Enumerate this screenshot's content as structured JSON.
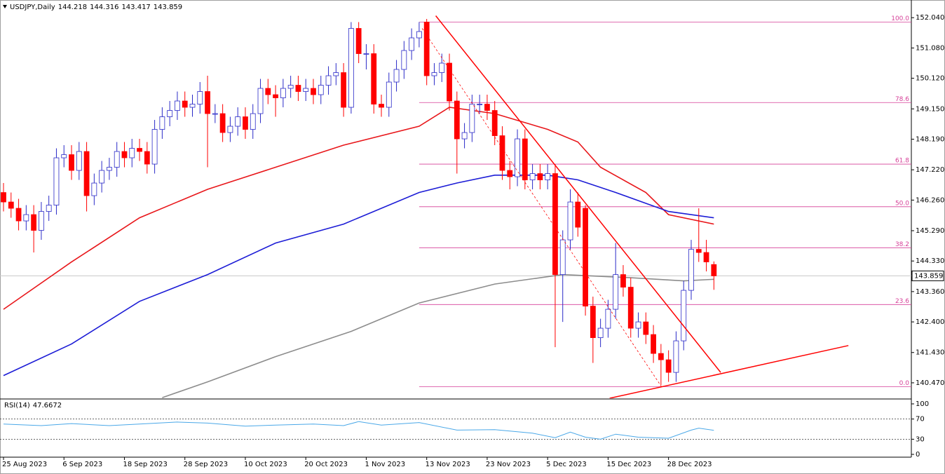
{
  "chart_data": {
    "type": "candlestick",
    "symbol": "USDJPY,Daily",
    "categories": [
      "25 Aug 2023",
      null,
      null,
      null,
      null,
      null,
      null,
      null,
      "6 Sep 2023",
      null,
      null,
      null,
      null,
      null,
      null,
      null,
      "18 Sep 2023",
      null,
      null,
      null,
      null,
      null,
      null,
      null,
      "28 Sep 2023",
      null,
      null,
      null,
      null,
      null,
      null,
      null,
      "10 Oct 2023",
      null,
      null,
      null,
      null,
      null,
      null,
      null,
      "20 Oct 2023",
      null,
      null,
      null,
      null,
      null,
      null,
      null,
      "1 Nov 2023",
      null,
      null,
      null,
      null,
      null,
      null,
      null,
      "13 Nov 2023",
      null,
      null,
      null,
      null,
      null,
      null,
      null,
      "23 Nov 2023",
      null,
      null,
      null,
      null,
      null,
      null,
      null,
      "5 Dec 2023",
      null,
      null,
      null,
      null,
      null,
      null,
      null,
      "15 Dec 2023",
      null,
      null,
      null,
      null,
      null,
      null,
      null,
      "28 Dec 2023",
      null,
      null,
      null,
      null,
      null,
      null
    ],
    "open": [
      146.5,
      146.2,
      146.0,
      145.6,
      145.8,
      145.3,
      145.9,
      146.1,
      147.6,
      147.7,
      147.2,
      147.8,
      146.4,
      146.8,
      147.2,
      147.3,
      147.8,
      147.6,
      147.9,
      147.8,
      147.4,
      148.5,
      148.9,
      149.1,
      149.4,
      149.2,
      149.3,
      149.7,
      149.0,
      149.0,
      148.4,
      148.6,
      148.9,
      148.5,
      149.0,
      149.8,
      149.6,
      149.5,
      149.8,
      149.9,
      149.7,
      149.8,
      149.6,
      149.9,
      150.2,
      150.3,
      149.2,
      151.7,
      150.9,
      150.9,
      149.3,
      149.2,
      150.0,
      150.4,
      151.0,
      151.4,
      151.9,
      150.2,
      150.3,
      150.6,
      149.4,
      148.2,
      148.4,
      149.3,
      149.3,
      149.1,
      148.3,
      147.2,
      147.0,
      148.2,
      146.9,
      147.1,
      146.9,
      147.1,
      143.9,
      145.0,
      146.2,
      146.0,
      142.9,
      141.9,
      142.2,
      142.8,
      143.9,
      143.5,
      142.2,
      142.4,
      142.0,
      141.4,
      141.2,
      140.8,
      141.8,
      143.4,
      144.7,
      144.6,
      144.218
    ],
    "high": [
      146.8,
      146.5,
      146.3,
      146.1,
      146.1,
      146.2,
      146.4,
      147.9,
      148.0,
      148.0,
      148.1,
      148.1,
      147.1,
      147.5,
      147.6,
      148.1,
      148.1,
      148.2,
      148.2,
      148.1,
      148.8,
      149.2,
      149.4,
      149.7,
      149.7,
      149.6,
      150.0,
      150.2,
      149.3,
      149.3,
      148.9,
      149.2,
      149.2,
      149.3,
      150.1,
      150.1,
      149.9,
      150.1,
      150.2,
      150.2,
      150.1,
      150.1,
      150.2,
      150.5,
      150.6,
      150.6,
      151.9,
      151.9,
      151.2,
      151.2,
      149.6,
      150.3,
      150.7,
      151.3,
      151.7,
      151.9,
      152.0,
      150.6,
      150.9,
      150.9,
      149.7,
      148.7,
      149.6,
      149.6,
      149.6,
      149.4,
      148.6,
      147.5,
      148.5,
      148.5,
      147.4,
      147.4,
      147.4,
      147.4,
      145.3,
      146.6,
      146.5,
      146.1,
      143.2,
      142.5,
      143.1,
      144.9,
      144.2,
      143.8,
      142.7,
      142.7,
      142.3,
      141.7,
      141.5,
      142.1,
      143.7,
      145.0,
      146.0,
      145.0,
      144.316
    ],
    "low": [
      145.9,
      145.7,
      145.3,
      145.3,
      144.6,
      145.0,
      145.6,
      145.8,
      147.3,
      146.9,
      146.9,
      145.9,
      146.1,
      146.5,
      146.9,
      147.0,
      147.3,
      147.3,
      147.5,
      147.1,
      147.1,
      148.2,
      148.6,
      148.8,
      148.9,
      148.9,
      149.0,
      147.3,
      148.7,
      148.1,
      148.1,
      148.3,
      148.2,
      148.2,
      148.7,
      149.3,
      148.9,
      149.2,
      149.5,
      149.4,
      149.4,
      149.3,
      149.3,
      149.6,
      149.9,
      148.9,
      149.0,
      150.6,
      150.4,
      149.0,
      148.9,
      148.9,
      149.7,
      150.1,
      150.7,
      151.1,
      149.9,
      149.9,
      150.0,
      149.1,
      147.1,
      147.9,
      148.1,
      149.0,
      148.8,
      148.0,
      146.9,
      146.6,
      146.7,
      146.6,
      146.6,
      146.6,
      146.6,
      141.6,
      142.4,
      144.7,
      145.1,
      142.6,
      141.1,
      141.6,
      141.9,
      142.5,
      143.2,
      141.9,
      141.9,
      141.7,
      141.1,
      140.4,
      140.5,
      140.5,
      141.5,
      143.1,
      144.3,
      144.0,
      143.417
    ],
    "close": [
      146.2,
      146.0,
      145.6,
      145.8,
      145.3,
      145.9,
      146.1,
      147.6,
      147.7,
      147.2,
      147.8,
      146.4,
      146.8,
      147.2,
      147.3,
      147.8,
      147.6,
      147.9,
      147.8,
      147.4,
      148.5,
      148.9,
      149.1,
      149.4,
      149.2,
      149.3,
      149.7,
      149.0,
      149.0,
      148.4,
      148.6,
      148.9,
      148.5,
      149.0,
      149.8,
      149.6,
      149.5,
      149.8,
      149.9,
      149.7,
      149.8,
      149.6,
      149.9,
      150.2,
      150.3,
      149.2,
      151.7,
      150.9,
      150.9,
      149.3,
      149.2,
      150.0,
      150.4,
      151.0,
      151.4,
      151.6,
      150.2,
      150.3,
      150.6,
      149.4,
      148.2,
      148.4,
      149.3,
      149.3,
      149.1,
      148.3,
      147.2,
      147.0,
      148.2,
      146.9,
      147.1,
      146.9,
      147.1,
      143.9,
      145.0,
      146.2,
      145.4,
      142.9,
      141.9,
      142.2,
      142.8,
      143.9,
      143.5,
      142.2,
      142.4,
      142.0,
      141.4,
      141.2,
      140.8,
      141.8,
      143.4,
      144.7,
      144.6,
      144.3,
      143.859
    ],
    "up_color": "#ffffff",
    "up_border": "#2b2bc8",
    "down_color": "#ff0000",
    "ylim": [
      139.98,
      152.6
    ],
    "yticks": [
      {
        "value": 152.04,
        "label": "152.040"
      },
      {
        "value": 151.08,
        "label": "151.080"
      },
      {
        "value": 150.12,
        "label": "150.120"
      },
      {
        "value": 149.15,
        "label": "149.150"
      },
      {
        "value": 148.19,
        "label": "148.190"
      },
      {
        "value": 147.22,
        "label": "147.220"
      },
      {
        "value": 146.26,
        "label": "146.260"
      },
      {
        "value": 145.29,
        "label": "145.290"
      },
      {
        "value": 144.33,
        "label": "144.330"
      },
      {
        "value": 143.36,
        "label": "143.360"
      },
      {
        "value": 142.4,
        "label": "142.400"
      },
      {
        "value": 141.43,
        "label": "141.430"
      },
      {
        "value": 140.47,
        "label": "140.470"
      }
    ],
    "moving_averages": [
      {
        "color": "#e8161a",
        "x": [
          0,
          9,
          18,
          27,
          36,
          45,
          55,
          59,
          65,
          72,
          76,
          79,
          85,
          88,
          94
        ],
        "values": [
          142.8,
          144.3,
          145.7,
          146.6,
          147.3,
          148.0,
          148.6,
          149.2,
          149.0,
          148.5,
          148.1,
          147.3,
          146.5,
          145.8,
          145.5
        ]
      },
      {
        "color": "#1c1cd6",
        "x": [
          0,
          9,
          18,
          27,
          36,
          45,
          55,
          60,
          65,
          72,
          76,
          81,
          88,
          94
        ],
        "values": [
          140.7,
          141.7,
          143.05,
          143.9,
          144.9,
          145.5,
          146.5,
          146.8,
          147.05,
          147.05,
          146.9,
          146.5,
          145.9,
          145.7
        ]
      },
      {
        "color": "#8c8c8c",
        "x": [
          21,
          27,
          36,
          46,
          55,
          65,
          74,
          83,
          90,
          94
        ],
        "values": [
          140.0,
          140.5,
          141.3,
          142.1,
          143.0,
          143.6,
          143.9,
          143.8,
          143.7,
          143.75
        ]
      }
    ],
    "trendlines": [
      {
        "color": "#ff0000",
        "x": [
          57.2,
          94.9
        ],
        "values": [
          152.1,
          140.8
        ]
      },
      {
        "color": "#ff0000",
        "x": [
          80.2,
          111.8
        ],
        "values": [
          139.98,
          141.65
        ]
      }
    ],
    "fib_base": {
      "color": "#ff0000",
      "x": [
        55.4,
        87.2
      ],
      "values": [
        151.7,
        140.3
      ]
    },
    "fibonacci": {
      "color": "#d63f98",
      "start": 55,
      "levels": [
        {
          "name": "100.0",
          "value": 151.9
        },
        {
          "name": "78.6",
          "value": 149.35
        },
        {
          "name": "61.8",
          "value": 147.4
        },
        {
          "name": "50.0",
          "value": 146.05
        },
        {
          "name": "38.2",
          "value": 144.75
        },
        {
          "name": "23.6",
          "value": 142.95
        },
        {
          "name": "0.0",
          "value": 140.35
        }
      ]
    },
    "rsi": {
      "label": "RSI(14)",
      "color": "#4aa8e8",
      "x": [
        0,
        5,
        9,
        14,
        18,
        23,
        27,
        32,
        36,
        41,
        45,
        47,
        50,
        55,
        60,
        65,
        70,
        73,
        75,
        77,
        79,
        81,
        84,
        88,
        91,
        92,
        94
      ],
      "values": [
        60,
        57,
        61,
        57,
        60,
        64,
        62,
        56,
        58,
        60,
        57,
        65,
        58,
        63,
        48,
        49,
        42,
        33,
        44,
        34,
        30,
        40,
        34,
        32,
        48,
        52,
        47.6672
      ],
      "ylim": [
        0,
        100
      ],
      "yticks": [
        0,
        30,
        70,
        100
      ],
      "levels": [
        30,
        70
      ]
    }
  }
}
